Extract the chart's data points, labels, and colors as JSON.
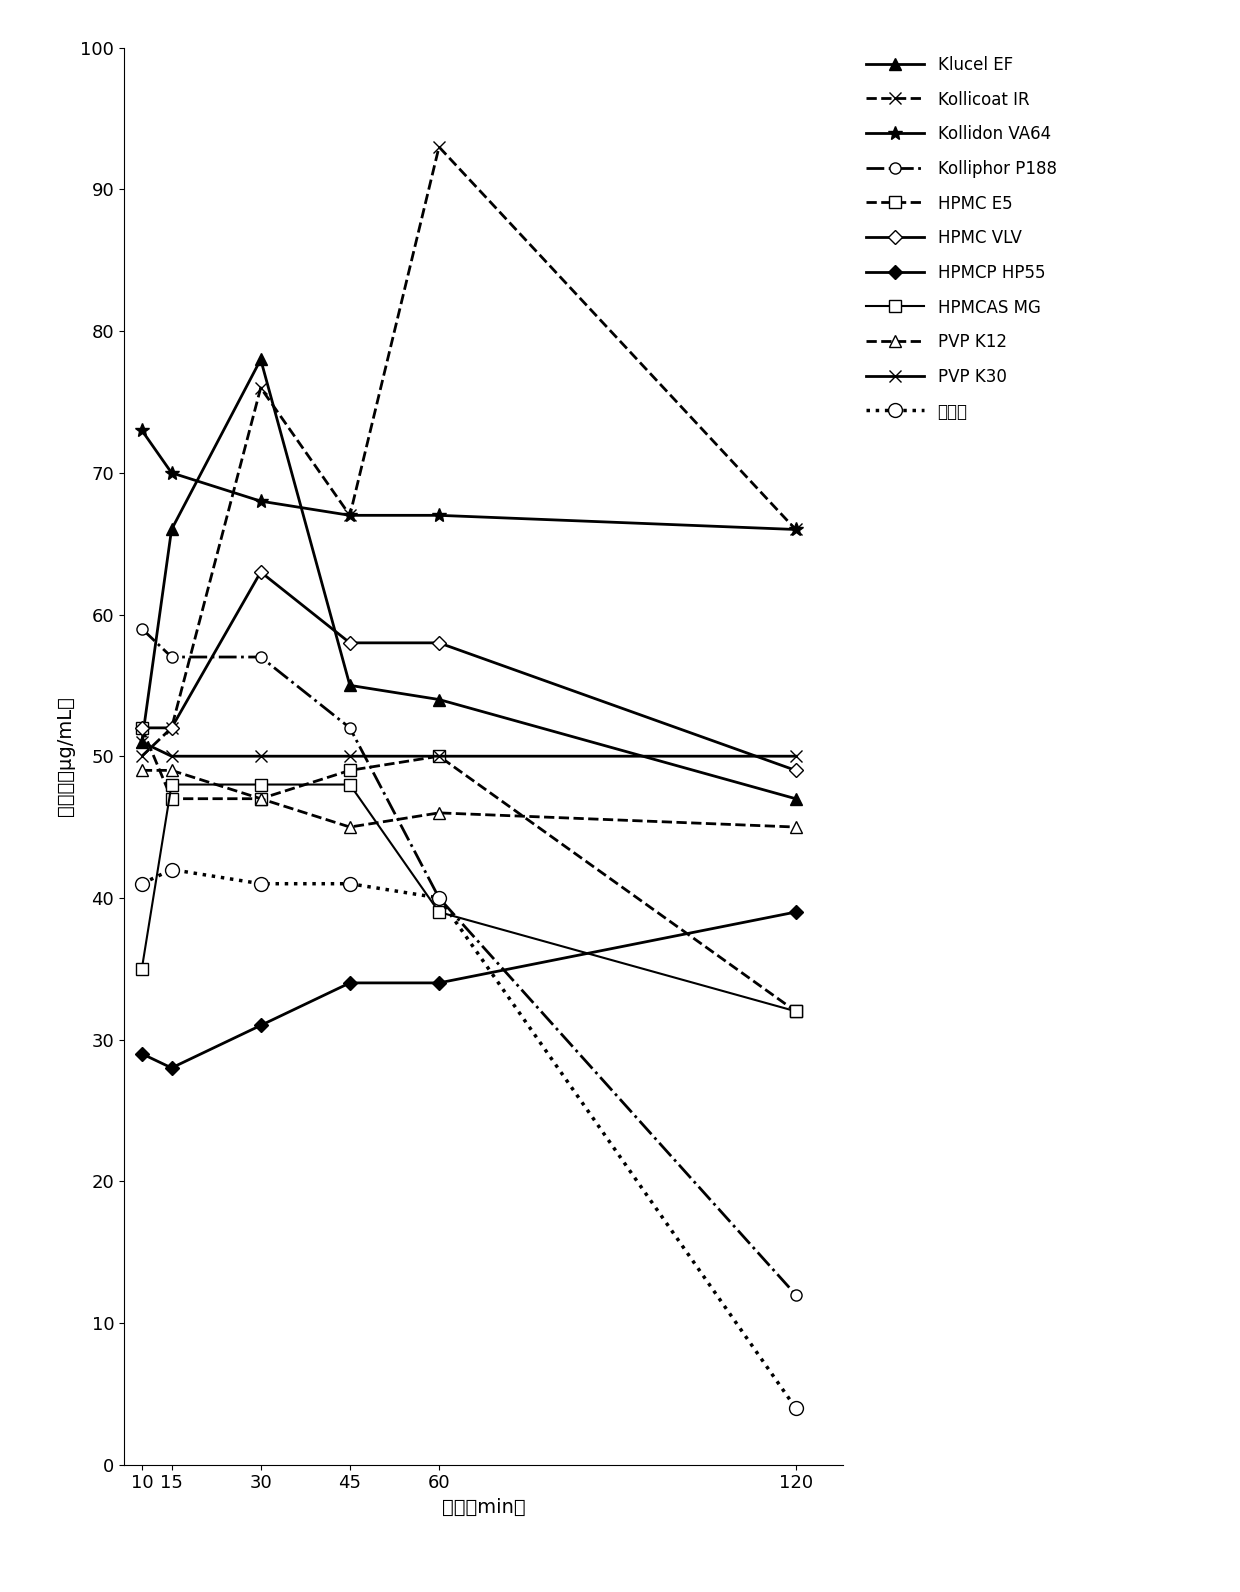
{
  "x": [
    10,
    15,
    30,
    45,
    60,
    120
  ],
  "series": {
    "Klucel EF": {
      "y": [
        51,
        66,
        78,
        55,
        54,
        47
      ],
      "ls": "-",
      "lw": 2.0,
      "marker": "^",
      "mfc": "black",
      "mec": "black",
      "ms": 8
    },
    "Kollicoat IR": {
      "y": [
        50,
        52,
        76,
        67,
        93,
        66
      ],
      "ls": "--",
      "lw": 2.0,
      "marker": "x",
      "mfc": "black",
      "mec": "black",
      "ms": 9
    },
    "Kollidon VA64": {
      "y": [
        73,
        70,
        68,
        67,
        67,
        66
      ],
      "ls": "-",
      "lw": 2.0,
      "marker": "*",
      "mfc": "black",
      "mec": "black",
      "ms": 10
    },
    "Kolliphor P188": {
      "y": [
        59,
        57,
        57,
        52,
        40,
        12
      ],
      "ls": "-.",
      "lw": 2.0,
      "marker": "o",
      "mfc": "white",
      "mec": "black",
      "ms": 8
    },
    "HPMC E5": {
      "y": [
        52,
        47,
        47,
        49,
        50,
        32
      ],
      "ls": "--",
      "lw": 2.0,
      "marker": "s",
      "mfc": "white",
      "mec": "black",
      "ms": 8
    },
    "HPMC VLV": {
      "y": [
        52,
        52,
        63,
        58,
        58,
        49
      ],
      "ls": "-",
      "lw": 2.0,
      "marker": "D",
      "mfc": "white",
      "mec": "black",
      "ms": 7
    },
    "HPMCP HP55": {
      "y": [
        29,
        28,
        31,
        34,
        34,
        39
      ],
      "ls": "-",
      "lw": 2.0,
      "marker": "D",
      "mfc": "black",
      "mec": "black",
      "ms": 7
    },
    "HPMCAS MG": {
      "y": [
        35,
        48,
        48,
        48,
        39,
        32
      ],
      "ls": "-",
      "lw": 1.5,
      "marker": "s",
      "mfc": "white",
      "mec": "black",
      "ms": 8
    },
    "PVP K12": {
      "y": [
        49,
        49,
        47,
        45,
        46,
        45
      ],
      "ls": "--",
      "lw": 2.0,
      "marker": "^",
      "mfc": "white",
      "mec": "black",
      "ms": 8
    },
    "PVP K30": {
      "y": [
        51,
        50,
        50,
        50,
        50,
        50
      ],
      "ls": "-",
      "lw": 2.0,
      "marker": "x",
      "mfc": "black",
      "mec": "black",
      "ms": 9
    },
    "对照组": {
      "y": [
        41,
        42,
        41,
        41,
        40,
        4
      ],
      "ls": ":",
      "lw": 2.5,
      "marker": "o",
      "mfc": "white",
      "mec": "black",
      "ms": 10
    }
  },
  "xlabel": "时间（min）",
  "ylabel": "溶解度（μg/mL）",
  "xlim": [
    7,
    128
  ],
  "ylim": [
    0,
    100
  ],
  "xticks": [
    10,
    15,
    30,
    45,
    60,
    120
  ],
  "yticks": [
    0,
    10,
    20,
    30,
    40,
    50,
    60,
    70,
    80,
    90,
    100
  ],
  "legend_fontsize": 12,
  "axis_label_fontsize": 14,
  "tick_fontsize": 13,
  "figsize": [
    12.4,
    15.92
  ],
  "dpi": 100
}
